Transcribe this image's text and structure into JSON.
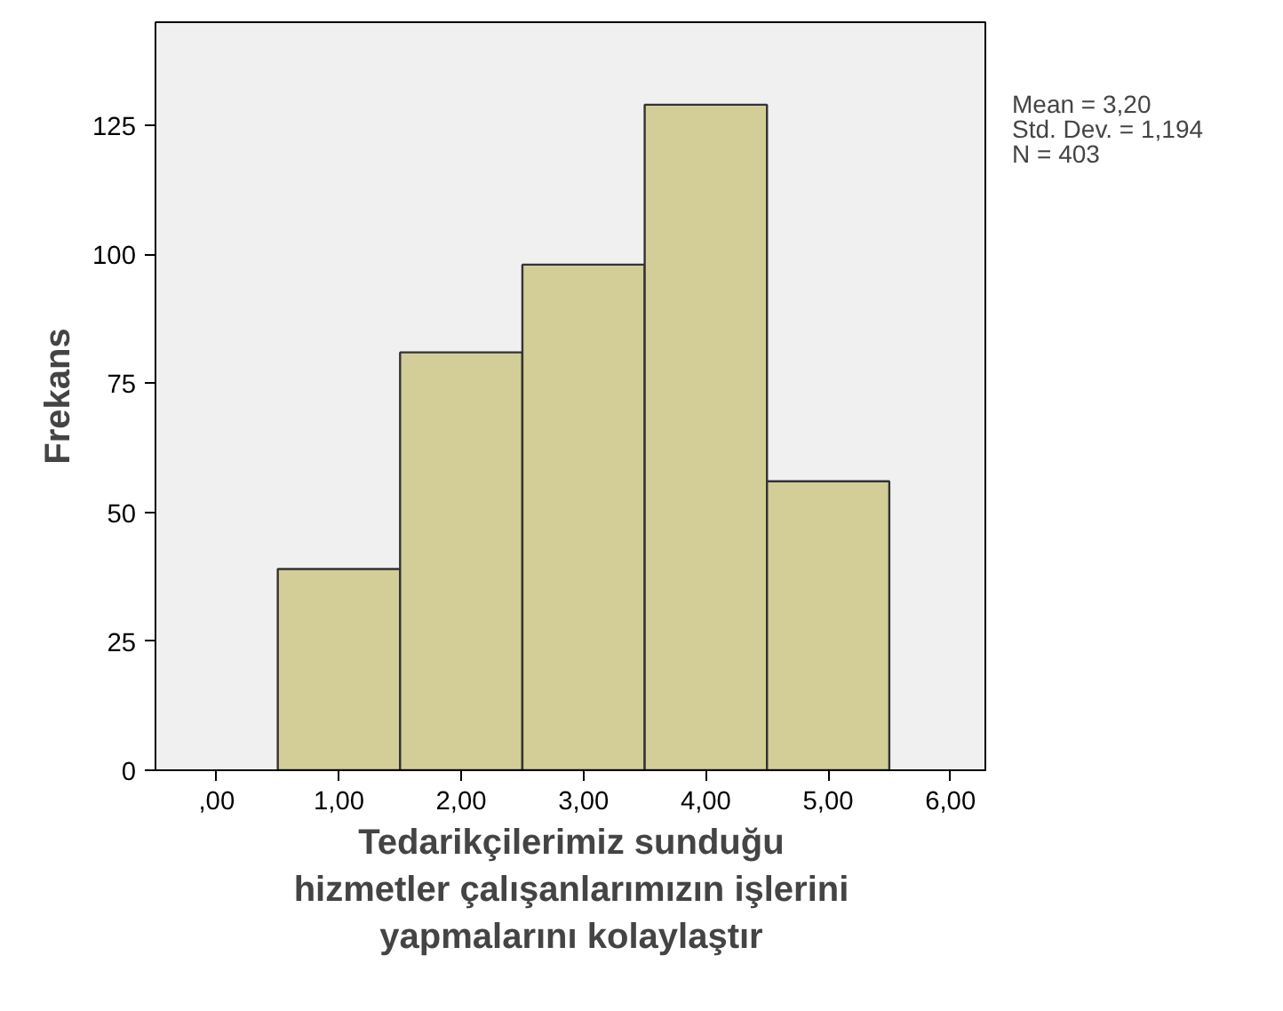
{
  "chart_data": {
    "type": "histogram",
    "xlabel": "Tedarikçilerimiz sunduğu\nhizmetler çalışanlarımızın işlerini\nyapmalarını kolaylaştır",
    "ylabel": "Frekans",
    "bins": [
      0.5,
      1.5,
      2.5,
      3.5,
      4.5,
      5.5
    ],
    "values": [
      39,
      81,
      98,
      129,
      56
    ],
    "color": "#d3ce97",
    "xlim": [
      -0.5,
      6.3
    ],
    "ylim": [
      0,
      145
    ],
    "xticks": [
      {
        "value": 0,
        "label": ",00"
      },
      {
        "value": 1,
        "label": "1,00"
      },
      {
        "value": 2,
        "label": "2,00"
      },
      {
        "value": 3,
        "label": "3,00"
      },
      {
        "value": 4,
        "label": "4,00"
      },
      {
        "value": 5,
        "label": "5,00"
      },
      {
        "value": 6,
        "label": "6,00"
      }
    ],
    "yticks": [
      0,
      25,
      50,
      75,
      100,
      125
    ],
    "annotations": [
      "Mean = 3,20",
      "Std. Dev. = 1,194",
      "N = 403"
    ],
    "grid": false
  }
}
